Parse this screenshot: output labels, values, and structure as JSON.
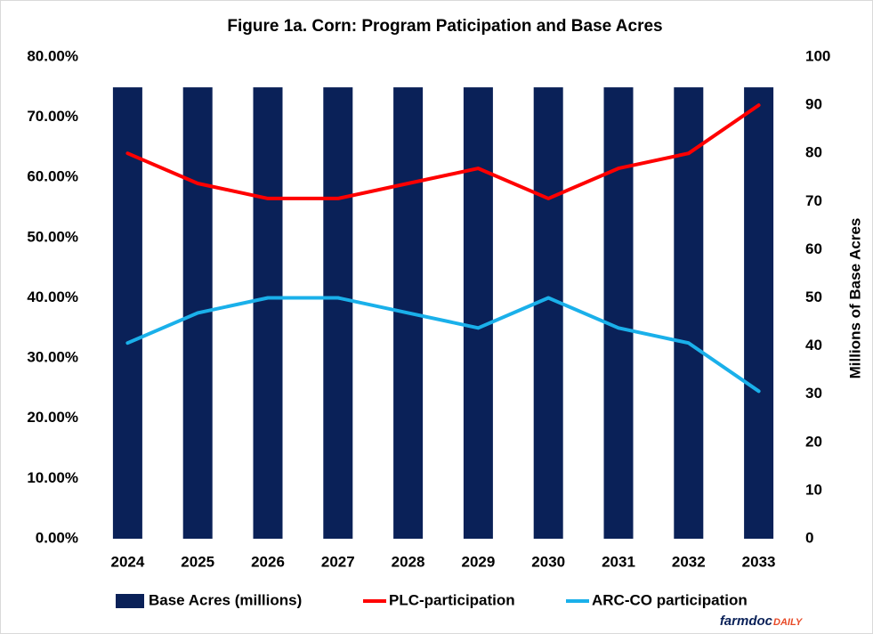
{
  "chart_data": {
    "type": "bar-line",
    "title": "Figure  1a. Corn: Program  Paticipation  and Base Acres",
    "y2label": "Millions of Base Acres",
    "categories": [
      "2024",
      "2025",
      "2026",
      "2027",
      "2028",
      "2029",
      "2030",
      "2031",
      "2032",
      "2033"
    ],
    "series": [
      {
        "name": "Base Acres (millions)",
        "type": "bar",
        "axis": "y2",
        "color": "#0a2158",
        "values": [
          93.7,
          93.7,
          93.7,
          93.7,
          93.7,
          93.7,
          93.7,
          93.7,
          93.7,
          93.7
        ]
      },
      {
        "name": "PLC-participation",
        "type": "line",
        "axis": "y",
        "color": "#ff0000",
        "values": [
          64,
          59,
          56.5,
          56.5,
          59,
          61.5,
          56.5,
          61.5,
          64,
          72
        ]
      },
      {
        "name": "ARC-CO participation",
        "type": "line",
        "axis": "y",
        "color": "#1ab0ea",
        "values": [
          32.5,
          37.5,
          40,
          40,
          37.5,
          35,
          40,
          35,
          32.5,
          24.5
        ]
      }
    ],
    "ylim": [
      0,
      80
    ],
    "yticks": [
      {
        "value": 0,
        "label": "0.00%"
      },
      {
        "value": 10,
        "label": "10.00%"
      },
      {
        "value": 20,
        "label": "20.00%"
      },
      {
        "value": 30,
        "label": "30.00%"
      },
      {
        "value": 40,
        "label": "40.00%"
      },
      {
        "value": 50,
        "label": "50.00%"
      },
      {
        "value": 60,
        "label": "60.00%"
      },
      {
        "value": 70,
        "label": "70.00%"
      },
      {
        "value": 80,
        "label": "80.00%"
      }
    ],
    "y2lim": [
      0,
      100
    ],
    "y2ticks": [
      0,
      10,
      20,
      30,
      40,
      50,
      60,
      70,
      80,
      90,
      100
    ],
    "grid": false,
    "legend": "bottom",
    "brand": {
      "main": "farmdoc",
      "suffix": "DAILY"
    }
  }
}
